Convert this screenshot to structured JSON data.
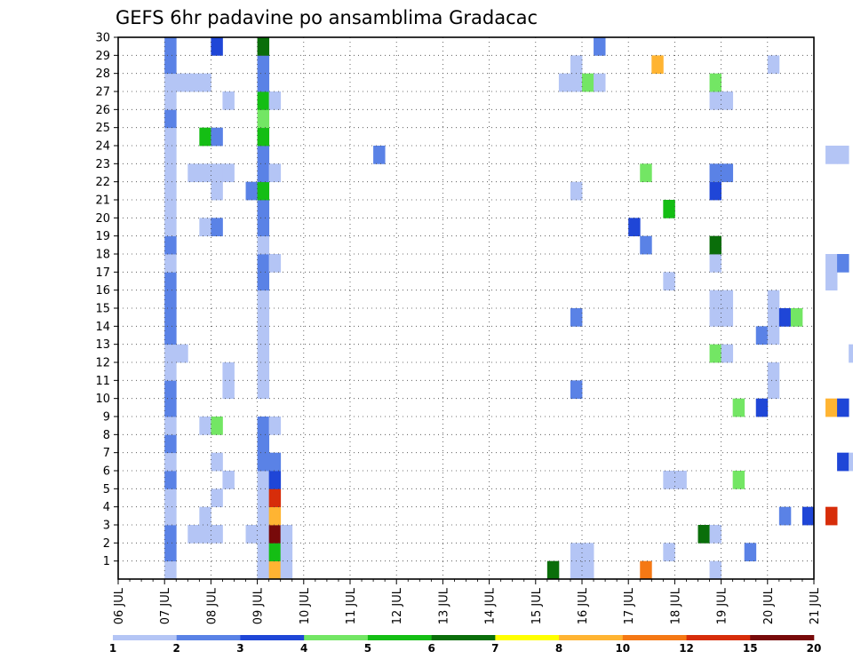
{
  "chart_data": {
    "type": "heatmap",
    "title": "GEFS 6hr padavine po ansamblima Gradacac",
    "xlabel": "",
    "ylabel": "",
    "x_tick_labels": [
      "06 JUL",
      "07 JUL",
      "08 JUL",
      "09 JUL",
      "10 JUL",
      "11 JUL",
      "12 JUL",
      "13 JUL",
      "14 JUL",
      "15 JUL",
      "16 JUL",
      "17 JUL",
      "18 JUL",
      "19 JUL",
      "20 JUL",
      "21 JUL"
    ],
    "y_tick_labels": [
      "1",
      "2",
      "3",
      "4",
      "5",
      "6",
      "7",
      "8",
      "9",
      "10",
      "11",
      "12",
      "13",
      "14",
      "15",
      "16",
      "17",
      "18",
      "19",
      "20",
      "21",
      "22",
      "23",
      "24",
      "25",
      "26",
      "27",
      "28",
      "29",
      "30"
    ],
    "x_range": [
      "06 JUL",
      "21 JUL"
    ],
    "y_range": [
      0,
      30
    ],
    "grid": true,
    "time_step_hours": 6,
    "legend": {
      "position": "bottom",
      "colors": [
        "#b4c5f5",
        "#5a82e6",
        "#1f46d7",
        "#73e664",
        "#14be14",
        "#0a6e0a",
        "#ffff00",
        "#ffb432",
        "#f57814",
        "#d72d0a",
        "#780a0a"
      ],
      "labels": [
        "1",
        "2",
        "3",
        "4",
        "5",
        "6",
        "7",
        "8",
        "10",
        "12",
        "15",
        "20"
      ]
    },
    "cells": [
      [
        4,
        0,
        1
      ],
      [
        4,
        1,
        2
      ],
      [
        4,
        2,
        2
      ],
      [
        4,
        3,
        1
      ],
      [
        4,
        4,
        1
      ],
      [
        4,
        5,
        2
      ],
      [
        4,
        6,
        1
      ],
      [
        4,
        7,
        2
      ],
      [
        4,
        8,
        1
      ],
      [
        4,
        9,
        2
      ],
      [
        4,
        10,
        2
      ],
      [
        4,
        11,
        1
      ],
      [
        4,
        12,
        1
      ],
      [
        4,
        13,
        2
      ],
      [
        4,
        14,
        2
      ],
      [
        4,
        15,
        2
      ],
      [
        4,
        16,
        2
      ],
      [
        4,
        17,
        1
      ],
      [
        4,
        18,
        2
      ],
      [
        4,
        19,
        1
      ],
      [
        4,
        20,
        1
      ],
      [
        4,
        21,
        1
      ],
      [
        4,
        22,
        1
      ],
      [
        4,
        23,
        1
      ],
      [
        4,
        24,
        1
      ],
      [
        4,
        25,
        2
      ],
      [
        4,
        26,
        1
      ],
      [
        4,
        27,
        1
      ],
      [
        4,
        28,
        2
      ],
      [
        4,
        29,
        2
      ],
      [
        5,
        27,
        1
      ],
      [
        5,
        12,
        1
      ],
      [
        6,
        27,
        1
      ],
      [
        6,
        22,
        1
      ],
      [
        6,
        2,
        1
      ],
      [
        7,
        27,
        1
      ],
      [
        7,
        24,
        5
      ],
      [
        7,
        22,
        1
      ],
      [
        7,
        19,
        1
      ],
      [
        7,
        8,
        1
      ],
      [
        7,
        3,
        1
      ],
      [
        7,
        2,
        1
      ],
      [
        8,
        29,
        3
      ],
      [
        8,
        24,
        2
      ],
      [
        8,
        22,
        1
      ],
      [
        8,
        21,
        1
      ],
      [
        8,
        19,
        2
      ],
      [
        8,
        8,
        4
      ],
      [
        8,
        6,
        1
      ],
      [
        8,
        4,
        1
      ],
      [
        8,
        2,
        1
      ],
      [
        9,
        22,
        1
      ],
      [
        9,
        26,
        1
      ],
      [
        9,
        11,
        1
      ],
      [
        9,
        10,
        1
      ],
      [
        9,
        5,
        1
      ],
      [
        11,
        21,
        2
      ],
      [
        11,
        2,
        1
      ],
      [
        12,
        0,
        2
      ],
      [
        12,
        0,
        1
      ],
      [
        12,
        1,
        1
      ],
      [
        12,
        2,
        1
      ],
      [
        12,
        3,
        1
      ],
      [
        12,
        4,
        1
      ],
      [
        12,
        5,
        1
      ],
      [
        12,
        6,
        2
      ],
      [
        12,
        7,
        2
      ],
      [
        12,
        8,
        2
      ],
      [
        12,
        10,
        1
      ],
      [
        12,
        11,
        1
      ],
      [
        12,
        12,
        1
      ],
      [
        12,
        13,
        1
      ],
      [
        12,
        14,
        1
      ],
      [
        12,
        15,
        1
      ],
      [
        12,
        16,
        2
      ],
      [
        12,
        17,
        2
      ],
      [
        12,
        18,
        1
      ],
      [
        12,
        19,
        2
      ],
      [
        12,
        20,
        2
      ],
      [
        12,
        21,
        5
      ],
      [
        12,
        22,
        2
      ],
      [
        12,
        23,
        2
      ],
      [
        12,
        24,
        5
      ],
      [
        12,
        25,
        4
      ],
      [
        12,
        26,
        5
      ],
      [
        12,
        27,
        2
      ],
      [
        12,
        28,
        2
      ],
      [
        12,
        29,
        6
      ],
      [
        13,
        0,
        8
      ],
      [
        13,
        1,
        5
      ],
      [
        13,
        2,
        11
      ],
      [
        13,
        3,
        8
      ],
      [
        13,
        4,
        10
      ],
      [
        13,
        5,
        3
      ],
      [
        13,
        6,
        2
      ],
      [
        13,
        8,
        1
      ],
      [
        13,
        17,
        1
      ],
      [
        13,
        22,
        1
      ],
      [
        13,
        26,
        1
      ],
      [
        14,
        0,
        1
      ],
      [
        14,
        1,
        1
      ],
      [
        14,
        2,
        1
      ],
      [
        22,
        23,
        2
      ],
      [
        37,
        0,
        6
      ],
      [
        38,
        27,
        1
      ],
      [
        39,
        0,
        2
      ],
      [
        39,
        0,
        1
      ],
      [
        39,
        1,
        1
      ],
      [
        39,
        10,
        2
      ],
      [
        39,
        14,
        2
      ],
      [
        39,
        21,
        1
      ],
      [
        39,
        27,
        1
      ],
      [
        39,
        28,
        1
      ],
      [
        40,
        0,
        1
      ],
      [
        40,
        0,
        1
      ],
      [
        40,
        1,
        1
      ],
      [
        40,
        27,
        4
      ],
      [
        41,
        27,
        1
      ],
      [
        41,
        29,
        2
      ],
      [
        44,
        19,
        3
      ],
      [
        45,
        0,
        9
      ],
      [
        45,
        18,
        2
      ],
      [
        45,
        22,
        4
      ],
      [
        46,
        28,
        8
      ],
      [
        47,
        5,
        1
      ],
      [
        47,
        1,
        1
      ],
      [
        47,
        16,
        1
      ],
      [
        47,
        20,
        5
      ],
      [
        48,
        5,
        1
      ],
      [
        50,
        2,
        6
      ],
      [
        51,
        0,
        1
      ],
      [
        51,
        2,
        1
      ],
      [
        51,
        12,
        4
      ],
      [
        51,
        14,
        1
      ],
      [
        51,
        15,
        1
      ],
      [
        51,
        17,
        1
      ],
      [
        51,
        18,
        6
      ],
      [
        51,
        21,
        3
      ],
      [
        51,
        22,
        2
      ],
      [
        51,
        26,
        1
      ],
      [
        51,
        27,
        4
      ],
      [
        52,
        12,
        1
      ],
      [
        52,
        14,
        1
      ],
      [
        52,
        15,
        1
      ],
      [
        52,
        22,
        2
      ],
      [
        52,
        26,
        1
      ],
      [
        53,
        5,
        4
      ],
      [
        53,
        9,
        4
      ],
      [
        54,
        1,
        2
      ],
      [
        55,
        9,
        3
      ],
      [
        55,
        13,
        2
      ],
      [
        56,
        10,
        1
      ],
      [
        56,
        11,
        1
      ],
      [
        56,
        13,
        1
      ],
      [
        56,
        14,
        1
      ],
      [
        56,
        15,
        1
      ],
      [
        56,
        28,
        1
      ],
      [
        57,
        3,
        2
      ],
      [
        57,
        14,
        3
      ],
      [
        58,
        14,
        4
      ],
      [
        59,
        3,
        3
      ],
      [
        61,
        3,
        10
      ],
      [
        61,
        9,
        8
      ],
      [
        61,
        16,
        1
      ],
      [
        61,
        17,
        1
      ],
      [
        61,
        23,
        1
      ],
      [
        62,
        4,
        12
      ],
      [
        62,
        6,
        3
      ],
      [
        62,
        9,
        3
      ],
      [
        62,
        17,
        2
      ],
      [
        62,
        23,
        1
      ],
      [
        63,
        6,
        1
      ],
      [
        63,
        12,
        1
      ],
      [
        65,
        0,
        3
      ],
      [
        66,
        0,
        5
      ],
      [
        66,
        8,
        4
      ],
      [
        66,
        16,
        5
      ],
      [
        66,
        25,
        6
      ],
      [
        67,
        8,
        1
      ],
      [
        68,
        12,
        2
      ],
      [
        70,
        5,
        3
      ],
      [
        74,
        10,
        1
      ],
      [
        78,
        21,
        3
      ],
      [
        78,
        23,
        1
      ],
      [
        79,
        23,
        1
      ],
      [
        80,
        12,
        3
      ],
      [
        81,
        12,
        1
      ],
      [
        82,
        12,
        1
      ],
      [
        82,
        16,
        1
      ],
      [
        82,
        25,
        1
      ],
      [
        86,
        5,
        5
      ],
      [
        86,
        3,
        4
      ],
      [
        86,
        25,
        3
      ],
      [
        88,
        12,
        3
      ],
      [
        89,
        12,
        7
      ],
      [
        89,
        16,
        8
      ],
      [
        90,
        0,
        4
      ],
      [
        90,
        12,
        1
      ],
      [
        90,
        16,
        1
      ],
      [
        91,
        24,
        1
      ],
      [
        92,
        0,
        3
      ],
      [
        92,
        1,
        6
      ],
      [
        92,
        2,
        2
      ],
      [
        92,
        8,
        8
      ],
      [
        92,
        25,
        1
      ],
      [
        92,
        26,
        8
      ],
      [
        93,
        0,
        1
      ],
      [
        93,
        2,
        1
      ],
      [
        93,
        24,
        2
      ],
      [
        93,
        25,
        2
      ],
      [
        93,
        26,
        1
      ],
      [
        94,
        0,
        4
      ],
      [
        94,
        25,
        2
      ],
      [
        94,
        26,
        1
      ],
      [
        95,
        11,
        1
      ],
      [
        95,
        25,
        1
      ],
      [
        96,
        1,
        3
      ],
      [
        96,
        11,
        6
      ],
      [
        96,
        13,
        2
      ]
    ]
  }
}
